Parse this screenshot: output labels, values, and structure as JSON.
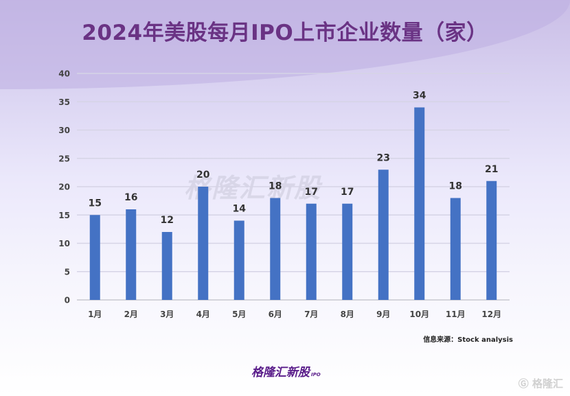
{
  "chart_data": {
    "type": "bar",
    "title": "2024年美股每月IPO上市企业数量（家）",
    "categories": [
      "1月",
      "2月",
      "3月",
      "4月",
      "5月",
      "6月",
      "7月",
      "8月",
      "9月",
      "10月",
      "11月",
      "12月"
    ],
    "values": [
      15,
      16,
      12,
      20,
      14,
      18,
      17,
      17,
      23,
      34,
      18,
      21
    ],
    "ylim": [
      0,
      40
    ],
    "yticks": [
      0,
      5,
      10,
      15,
      20,
      25,
      30,
      35,
      40
    ],
    "xlabel": "",
    "ylabel": "",
    "grid": true,
    "bar_color": "#4472c4"
  },
  "source": "信息来源：Stock analysis",
  "logo": {
    "text": "格隆汇新股",
    "sub": "IPO"
  },
  "watermark": "格隆汇"
}
